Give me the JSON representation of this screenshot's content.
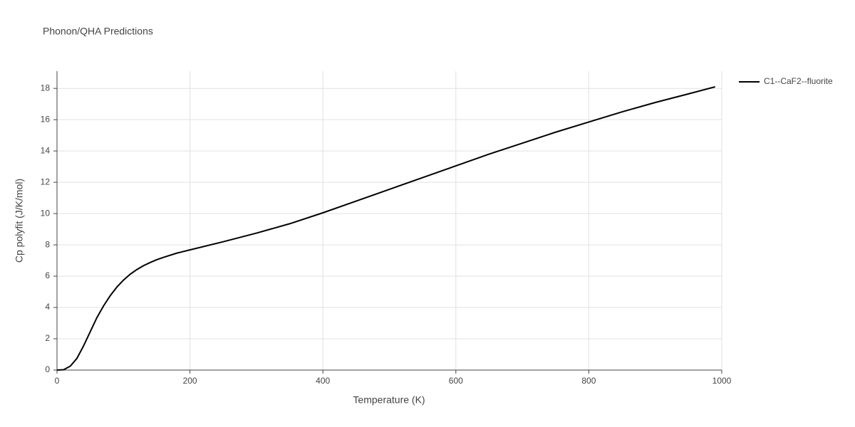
{
  "chart_data": {
    "type": "line",
    "title": "Phonon/QHA Predictions",
    "xlabel": "Temperature (K)",
    "ylabel": "Cp polyfit (J/K/mol)",
    "x": [
      0,
      10,
      20,
      30,
      40,
      50,
      60,
      70,
      80,
      90,
      100,
      110,
      120,
      130,
      140,
      150,
      160,
      180,
      200,
      250,
      300,
      350,
      400,
      450,
      500,
      550,
      600,
      650,
      700,
      750,
      800,
      850,
      900,
      950,
      990
    ],
    "series": [
      {
        "name": "C1--CaF2--fluorite",
        "color": "#000000",
        "values": [
          0,
          0.02,
          0.25,
          0.75,
          1.55,
          2.45,
          3.35,
          4.1,
          4.75,
          5.3,
          5.75,
          6.12,
          6.42,
          6.67,
          6.87,
          7.05,
          7.2,
          7.47,
          7.68,
          8.2,
          8.75,
          9.35,
          10.05,
          10.8,
          11.55,
          12.3,
          13.05,
          13.8,
          14.5,
          15.2,
          15.85,
          16.5,
          17.1,
          17.65,
          18.1
        ]
      }
    ],
    "xlim": [
      0,
      1000
    ],
    "xticks": [
      0,
      200,
      400,
      600,
      800,
      1000
    ],
    "ylim": [
      0,
      19.1
    ],
    "yticks": [
      0,
      2,
      4,
      6,
      8,
      10,
      12,
      14,
      16,
      18
    ],
    "grid": true,
    "legend": "right"
  }
}
